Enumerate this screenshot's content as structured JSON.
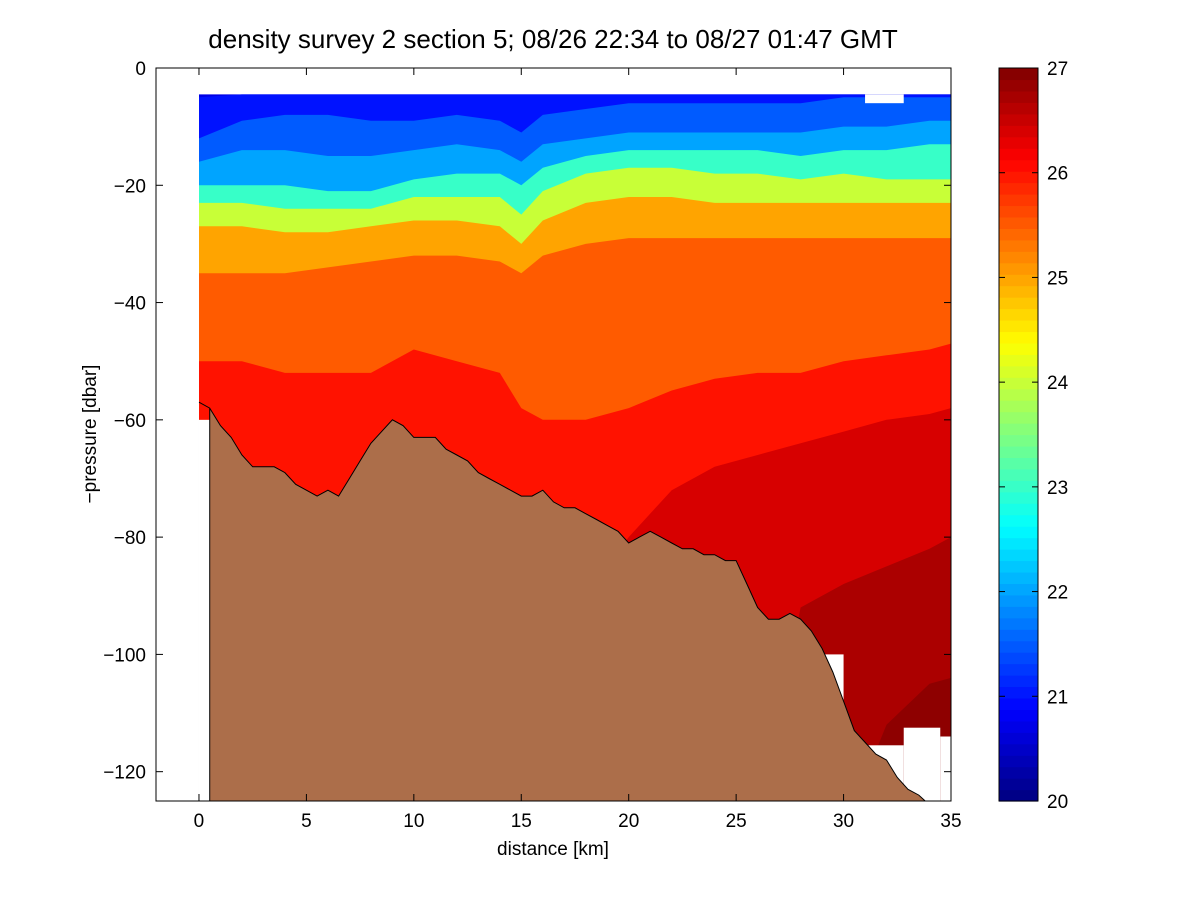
{
  "chart_data": {
    "type": "heatmap",
    "title": "density survey 2 section 5; 08/26 22:34 to 08/27 01:47 GMT",
    "xlabel": "distance [km]",
    "ylabel": "−pressure [dbar]",
    "xlim": [
      -2,
      35
    ],
    "ylim": [
      -125,
      0
    ],
    "xticks": [
      0,
      5,
      10,
      15,
      20,
      25,
      30,
      35
    ],
    "xticklabels": [
      "0",
      "5",
      "10",
      "15",
      "20",
      "25",
      "30",
      "35"
    ],
    "yticks": [
      0,
      -20,
      -40,
      -60,
      -80,
      -100,
      -120
    ],
    "yticklabels": [
      "0",
      "−20",
      "−40",
      "−60",
      "−80",
      "−100",
      "−120"
    ],
    "colorbar": {
      "range": [
        20,
        27
      ],
      "ticks": [
        20,
        21,
        22,
        23,
        24,
        25,
        26,
        27
      ],
      "ticklabels": [
        "20",
        "21",
        "22",
        "23",
        "24",
        "25",
        "26",
        "27"
      ],
      "colormap": "jet"
    },
    "data_top_pressure": -4.5,
    "isopycnal_depths": {
      "x_km": [
        0,
        2,
        4,
        6,
        8,
        10,
        12,
        14,
        15,
        16,
        18,
        20,
        22,
        24,
        26,
        28,
        30,
        32,
        34,
        35
      ],
      "series": [
        {
          "name": "21",
          "values": [
            -5,
            -4,
            -4,
            -4,
            -4,
            -4,
            -4,
            -4,
            -4,
            -4,
            -4,
            -4,
            -4,
            -4,
            -4,
            -4,
            -4,
            -4,
            -4,
            -4
          ]
        },
        {
          "name": "21.5",
          "values": [
            -12,
            -9,
            -8,
            -8,
            -9,
            -9,
            -8,
            -9,
            -11,
            -8,
            -7,
            -6,
            -6,
            -6,
            -6,
            -6,
            -5,
            -5,
            -5,
            -5
          ]
        },
        {
          "name": "22",
          "values": [
            -16,
            -14,
            -14,
            -15,
            -15,
            -14,
            -13,
            -14,
            -16,
            -13,
            -12,
            -11,
            -11,
            -11,
            -11,
            -11,
            -10,
            -10,
            -9,
            -9
          ]
        },
        {
          "name": "23",
          "values": [
            -20,
            -20,
            -20,
            -21,
            -21,
            -19,
            -18,
            -18,
            -20,
            -17,
            -15,
            -14,
            -14,
            -14,
            -14,
            -15,
            -14,
            -14,
            -13,
            -13
          ]
        },
        {
          "name": "24",
          "values": [
            -23,
            -23,
            -24,
            -24,
            -24,
            -22,
            -22,
            -22,
            -25,
            -21,
            -18,
            -17,
            -17,
            -18,
            -18,
            -19,
            -18,
            -19,
            -19,
            -19
          ]
        },
        {
          "name": "25",
          "values": [
            -27,
            -27,
            -28,
            -28,
            -27,
            -26,
            -26,
            -27,
            -30,
            -26,
            -23,
            -22,
            -22,
            -23,
            -23,
            -23,
            -23,
            -23,
            -23,
            -23
          ]
        },
        {
          "name": "25.5",
          "values": [
            -35,
            -35,
            -35,
            -34,
            -33,
            -32,
            -32,
            -33,
            -35,
            -32,
            -30,
            -29,
            -29,
            -29,
            -29,
            -29,
            -29,
            -29,
            -29,
            -29
          ]
        },
        {
          "name": "26",
          "values": [
            -50,
            -50,
            -52,
            -52,
            -52,
            -48,
            -50,
            -52,
            -58,
            -60,
            -60,
            -58,
            -55,
            -53,
            -52,
            -52,
            -50,
            -49,
            -48,
            -47
          ]
        },
        {
          "name": "26.4",
          "values": [
            -130,
            -130,
            -130,
            -130,
            -130,
            -130,
            -130,
            -130,
            -130,
            -130,
            -90,
            -80,
            -72,
            -68,
            -66,
            -64,
            -62,
            -60,
            -59,
            -58
          ]
        },
        {
          "name": "26.7",
          "values": [
            -130,
            -130,
            -130,
            -130,
            -130,
            -130,
            -130,
            -130,
            -130,
            -130,
            -130,
            -130,
            -130,
            -130,
            -130,
            -92,
            -88,
            -85,
            -82,
            -80
          ]
        },
        {
          "name": "26.9",
          "values": [
            -130,
            -130,
            -130,
            -130,
            -130,
            -130,
            -130,
            -130,
            -130,
            -130,
            -130,
            -130,
            -130,
            -130,
            -130,
            -130,
            -130,
            -112,
            -105,
            -104
          ]
        }
      ]
    },
    "seafloor": {
      "x_km": [
        0.0,
        0.5,
        1.0,
        1.5,
        2.0,
        2.5,
        3.0,
        3.5,
        4.0,
        4.5,
        5.0,
        5.5,
        6.0,
        6.5,
        7.0,
        7.5,
        8.0,
        8.5,
        9.0,
        9.5,
        10.0,
        10.5,
        11.0,
        11.5,
        12.0,
        12.5,
        13.0,
        13.5,
        14.0,
        14.5,
        15.0,
        15.5,
        16.0,
        16.5,
        17.0,
        17.5,
        18.0,
        18.5,
        19.0,
        19.5,
        20.0,
        20.5,
        21.0,
        21.5,
        22.0,
        22.5,
        23.0,
        23.5,
        24.0,
        24.5,
        25.0,
        25.5,
        26.0,
        26.5,
        27.0,
        27.5,
        28.0,
        28.5,
        29.0,
        29.5,
        30.0,
        30.5,
        31.0,
        31.5,
        32.0,
        32.5,
        33.0,
        33.5,
        33.8
      ],
      "pressure": [
        -57,
        -58,
        -61,
        -63,
        -66,
        -68,
        -68,
        -68,
        -69,
        -71,
        -72,
        -73,
        -72,
        -73,
        -70,
        -67,
        -64,
        -62,
        -60,
        -61,
        -63,
        -63,
        -63,
        -65,
        -66,
        -67,
        -69,
        -70,
        -71,
        -72,
        -73,
        -73,
        -72,
        -74,
        -75,
        -75,
        -76,
        -77,
        -78,
        -79,
        -81,
        -80,
        -79,
        -80,
        -81,
        -82,
        -82,
        -83,
        -83,
        -84,
        -84,
        -88,
        -92,
        -94,
        -94,
        -93,
        -94,
        -96,
        -99,
        -103,
        -108,
        -113,
        -115,
        -117,
        -118,
        -121,
        -123,
        -124,
        -125
      ]
    },
    "seafloor_color": "#ac6e4a",
    "blank_pixel_color": "#ffffff"
  }
}
